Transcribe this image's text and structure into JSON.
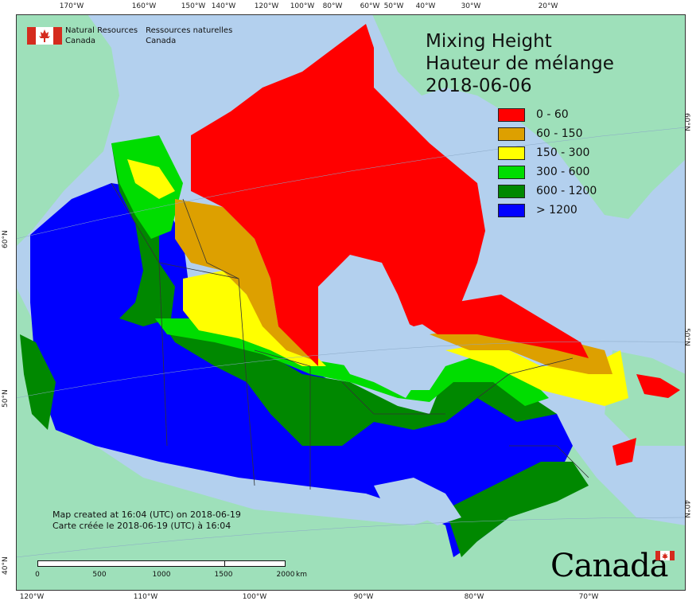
{
  "map": {
    "title_lines": [
      "Mixing Height",
      "Hauteur de mélange",
      "2018-06-06"
    ],
    "colors": {
      "ocean": "#b3d0ee",
      "land": "#9ee0ba",
      "red": "#ff0000",
      "orange": "#dda000",
      "yellow": "#ffff00",
      "lightgreen": "#00dd00",
      "green": "#008800",
      "blue": "#0000ff",
      "border": "#333333"
    },
    "legend": [
      {
        "label": "0 - 60",
        "color": "#ff0000"
      },
      {
        "label": "60 - 150",
        "color": "#dda000"
      },
      {
        "label": "150 - 300",
        "color": "#ffff00"
      },
      {
        "label": "300 - 600",
        "color": "#00dd00"
      },
      {
        "label": "600 - 1200",
        "color": "#008800"
      },
      {
        "label": "> 1200",
        "color": "#0000ff"
      }
    ],
    "agency": {
      "en_line1": "Natural Resources",
      "en_line2": "Canada",
      "fr_line1": "Ressources naturelles",
      "fr_line2": "Canada"
    },
    "credit": {
      "en": "Map created at 16:04 (UTC) on 2018-06-19",
      "fr": "Carte créée le 2018-06-19 (UTC) à 16:04"
    },
    "scale": {
      "labels": [
        "0",
        "500",
        "1000",
        "1500",
        "2000"
      ],
      "unit": "km"
    },
    "wordmark": "Canada",
    "top_ticks": [
      "170°W",
      "160°W",
      "150°W",
      "140°W",
      "120°W",
      "100°W",
      "80°W",
      "60°W",
      "50°W",
      "40°W",
      "30°W",
      "20°W"
    ],
    "bottom_ticks": [
      "120°W",
      "110°W",
      "100°W",
      "90°W",
      "80°W",
      "70°W"
    ],
    "left_ticks": [
      "60°N",
      "50°N",
      "40°N"
    ],
    "right_ticks": [
      "60°N",
      "50°N",
      "40°N"
    ]
  }
}
